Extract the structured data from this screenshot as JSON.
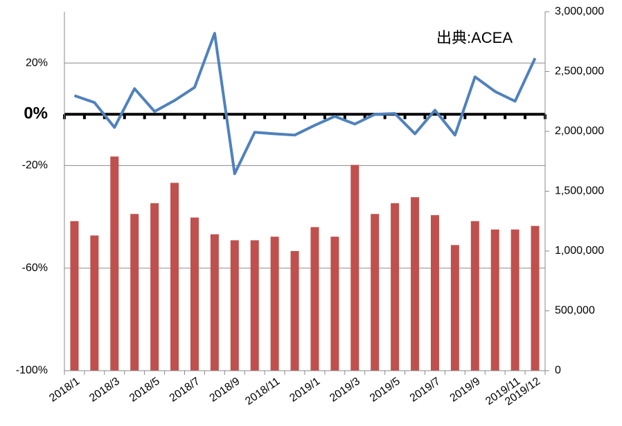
{
  "chart_data": {
    "type": "bar_line",
    "annotation": "出典:ACEA",
    "categories": [
      "2018/1",
      null,
      "2018/3",
      null,
      "2018/5",
      null,
      "2018/7",
      null,
      "2018/9",
      null,
      "2018/11",
      null,
      "2019/1",
      null,
      "2019/3",
      null,
      "2019/5",
      null,
      "2019/7",
      null,
      "2019/9",
      null,
      "2019/11",
      "2019/12"
    ],
    "series": [
      {
        "type": "bar",
        "axis": "y2",
        "color": "#c0504d",
        "values": [
          1250000,
          1130000,
          1790000,
          1310000,
          1400000,
          1570000,
          1280000,
          1140000,
          1090000,
          1090000,
          1120000,
          1000000,
          1200000,
          1120000,
          1720000,
          1310000,
          1400000,
          1450000,
          1300000,
          1050000,
          1250000,
          1180000,
          1180000,
          1210000
        ]
      },
      {
        "type": "line",
        "axis": "y",
        "color": "#4f81bd",
        "values": [
          7.3,
          4.6,
          -5.1,
          10,
          1.1,
          5.4,
          10.5,
          31.6,
          -23.2,
          -7.0,
          -7.6,
          -8.1,
          -4.3,
          -0.8,
          -3.8,
          0,
          0.3,
          -7.6,
          1.6,
          -8.1,
          14.6,
          8.9,
          5.1,
          21.9
        ]
      }
    ],
    "ylim": [
      -100,
      40
    ],
    "yticks": [
      {
        "value": 20,
        "label": "20%"
      },
      {
        "value": 0,
        "label": "0%"
      },
      {
        "value": -20,
        "label": "-20%"
      },
      {
        "value": -60,
        "label": "-60%"
      },
      {
        "value": -100,
        "label": "-100%"
      }
    ],
    "y2lim": [
      0,
      3000000
    ],
    "y2ticks": [
      {
        "value": 0,
        "label": "0"
      },
      {
        "value": 500000,
        "label": "500,000"
      },
      {
        "value": 1000000,
        "label": "1,000,000"
      },
      {
        "value": 1500000,
        "label": "1,500,000"
      },
      {
        "value": 2000000,
        "label": "2,000,000"
      },
      {
        "value": 2500000,
        "label": "2,500,000"
      },
      {
        "value": 3000000,
        "label": "3,000,000"
      }
    ],
    "grid": true
  }
}
